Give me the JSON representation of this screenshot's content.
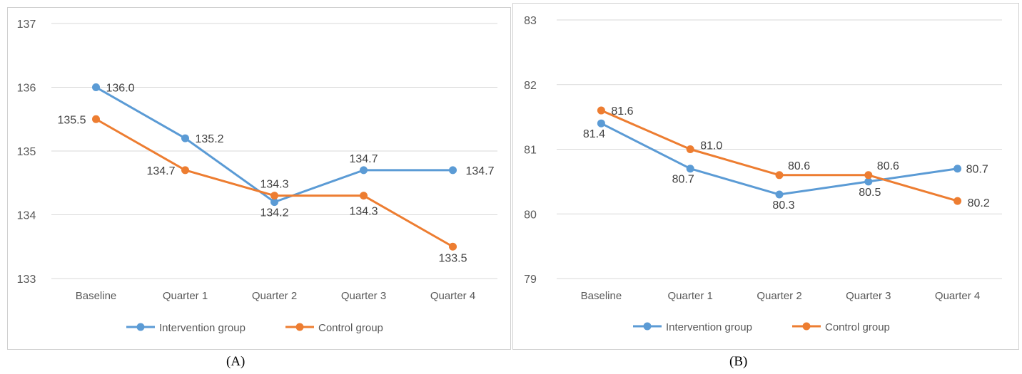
{
  "chart_data": [
    {
      "type": "line",
      "caption": "(A)",
      "categories": [
        "Baseline",
        "Quarter 1",
        "Quarter 2",
        "Quarter 3",
        "Quarter 4"
      ],
      "ylim": [
        133,
        137
      ],
      "yticks": [
        133,
        134,
        135,
        136,
        137
      ],
      "grid": true,
      "legend": "bottom",
      "series": [
        {
          "name": "Intervention group",
          "color": "#5b9bd5",
          "values": [
            136.0,
            135.2,
            134.2,
            134.7,
            134.7
          ],
          "labels": [
            "136.0",
            "135.2",
            "134.2",
            "134.7",
            "134.7"
          ]
        },
        {
          "name": "Control group",
          "color": "#ed7d31",
          "values": [
            135.5,
            134.7,
            134.3,
            134.3,
            133.5
          ],
          "labels": [
            "135.5",
            "134.7",
            "134.3",
            "134.3",
            "133.5"
          ]
        }
      ]
    },
    {
      "type": "line",
      "caption": "(B)",
      "categories": [
        "Baseline",
        "Quarter 1",
        "Quarter 2",
        "Quarter 3",
        "Quarter 4"
      ],
      "ylim": [
        79,
        83
      ],
      "yticks": [
        79,
        80,
        81,
        82,
        83
      ],
      "grid": true,
      "legend": "bottom",
      "series": [
        {
          "name": "Intervention group",
          "color": "#5b9bd5",
          "values": [
            81.4,
            80.7,
            80.3,
            80.5,
            80.7
          ],
          "labels": [
            "81.4",
            "80.7",
            "80.3",
            "80.5",
            "80.7"
          ]
        },
        {
          "name": "Control group",
          "color": "#ed7d31",
          "values": [
            81.6,
            81.0,
            80.6,
            80.6,
            80.2
          ],
          "labels": [
            "81.6",
            "81.0",
            "80.6",
            "80.6",
            "80.2"
          ]
        }
      ]
    }
  ]
}
